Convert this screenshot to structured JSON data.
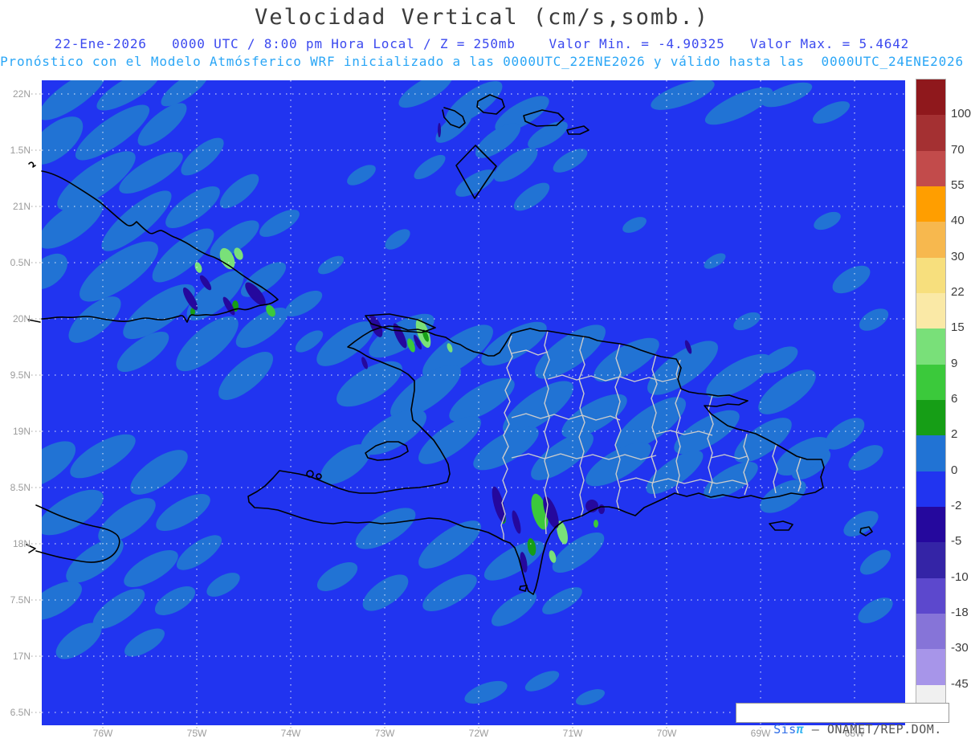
{
  "header": {
    "title": "Velocidad Vertical (cm/s,somb.)",
    "line1": "22-Ene-2026   0000 UTC / 8:00 pm Hora Local / Z = 250mb    Valor Min. = -4.90325   Valor Max. = 5.4642",
    "line2": "Pronóstico con el Modelo Atmósferico WRF inicializado a las 0000UTC_22ENE2026 y válido hasta las  0000UTC_24ENE2026"
  },
  "branding": {
    "sis": "Sis",
    "pi": "π",
    "org": " – ONAMET/REP.DOM."
  },
  "axes": {
    "y_ticks": [
      {
        "label": "22N",
        "y": 117
      },
      {
        "label": "1.5N",
        "y": 187
      },
      {
        "label": "21N",
        "y": 257
      },
      {
        "label": "0.5N",
        "y": 327
      },
      {
        "label": "20N",
        "y": 397
      },
      {
        "label": "9.5N",
        "y": 467
      },
      {
        "label": "19N",
        "y": 537
      },
      {
        "label": "8.5N",
        "y": 607
      },
      {
        "label": "18N",
        "y": 677
      },
      {
        "label": "7.5N",
        "y": 747
      },
      {
        "label": "17N",
        "y": 817
      },
      {
        "label": "6.5N",
        "y": 887
      }
    ],
    "x_ticks": [
      {
        "label": "76W",
        "x": 128
      },
      {
        "label": "75W",
        "x": 245
      },
      {
        "label": "74W",
        "x": 362
      },
      {
        "label": "73W",
        "x": 479
      },
      {
        "label": "72W",
        "x": 596
      },
      {
        "label": "71W",
        "x": 713
      },
      {
        "label": "70W",
        "x": 830
      },
      {
        "label": "69W",
        "x": 947
      },
      {
        "label": "68W",
        "x": 1064
      }
    ]
  },
  "colorbar": {
    "labels": [
      "100",
      "70",
      "55",
      "40",
      "30",
      "22",
      "15",
      "9",
      "6",
      "2",
      "0",
      "-2",
      "-5",
      "-10",
      "-18",
      "-30",
      "-45"
    ],
    "colors": [
      "#8f181c",
      "#a43032",
      "#c24b4b",
      "#ff9e00",
      "#f7b84e",
      "#f7df7d",
      "#fae9a6",
      "#79e079",
      "#3bc93b",
      "#169e16",
      "#2173d4",
      "#2134f0",
      "#25089d",
      "#3424a6",
      "#5c48cd",
      "#8674d8",
      "#a795e9",
      "#f0f0f0"
    ]
  },
  "colors": {
    "sea": "#2134f0",
    "patch": "#2173d4",
    "indigo": "#25089d",
    "green_light": "#79e079",
    "green_mid": "#3bc93b",
    "green_dark": "#169e16",
    "coast": "#000000",
    "province": "#cccccc",
    "grid": "#ffffff",
    "tick": "#b5b5b5",
    "title": "#3c3c3c",
    "line1": "#3b49ef",
    "line2": "#2aa6f6",
    "axis": "#9c9c9c",
    "cbar_label": "#3c3c3c",
    "brand_sis": "#2f6de8",
    "brand_pi": "#35b5f2"
  },
  "chart_data": {
    "type": "heatmap",
    "title": "Velocidad Vertical (cm/s,somb.)",
    "level": "Z = 250mb",
    "datetime": "22-Ene-2026 0000 UTC / 8:00 pm Hora Local",
    "model_run": "WRF inicializado a las 0000UTC_22ENE2026 y válido hasta las 0000UTC_24ENE2026",
    "value_min": -4.90325,
    "value_max": 5.4642,
    "units": "cm/s",
    "x_ticks": [
      "76W",
      "75W",
      "74W",
      "73W",
      "72W",
      "71W",
      "70W",
      "69W",
      "68W"
    ],
    "y_ticks": [
      "22N",
      "1.5N",
      "21N",
      "0.5N",
      "20N",
      "9.5N",
      "19N",
      "8.5N",
      "18N",
      "7.5N",
      "17N",
      "6.5N"
    ],
    "colorbar_levels": [
      100,
      70,
      55,
      40,
      30,
      22,
      15,
      9,
      6,
      2,
      0,
      -2,
      -5,
      -10,
      -18,
      -30,
      -45
    ],
    "colorbar_colors": [
      "#8f181c",
      "#a43032",
      "#c24b4b",
      "#ff9e00",
      "#f7b84e",
      "#f7df7d",
      "#fae9a6",
      "#79e079",
      "#3bc93b",
      "#169e16",
      "#2173d4",
      "#2134f0",
      "#25089d",
      "#3424a6",
      "#5c48cd",
      "#8674d8",
      "#a795e9",
      "#f0f0f0"
    ],
    "legend_position": "right",
    "grid": true,
    "dominant_field_value_range": "0 to -2 (background), patches 0 to 2"
  }
}
